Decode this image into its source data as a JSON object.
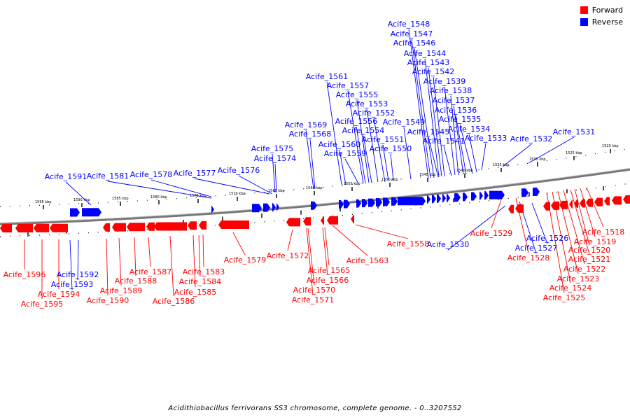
{
  "legend": {
    "forward_label": "Forward",
    "reverse_label": "Reverse",
    "forward_color": "#ff0000",
    "reverse_color": "#0000ff"
  },
  "caption": "Acidithiobacillus ferrivorans SS3 chromosome, complete genome. - 0..3207552",
  "tick_labels": [
    "1595 kbp",
    "1590 kbp",
    "1585 kbp",
    "1580 kbp",
    "1575 kbp",
    "1570 kbp",
    "1565 kbp",
    "1560 kbp",
    "1555 kbp",
    "1550 kbp",
    "1545 kbp",
    "1540 kbp",
    "1535 kbp",
    "1530 kbp",
    "1525 kbp",
    "1520 kbp"
  ],
  "reverse_genes": [
    "Acife_1591",
    "Acife_1581",
    "Acife_1578",
    "Acife_1577",
    "Acife_1576",
    "Acife_1575",
    "Acife_1574",
    "Acife_1569",
    "Acife_1568",
    "Acife_1561",
    "Acife_1560",
    "Acife_1559",
    "Acife_1557",
    "Acife_1556",
    "Acife_1555",
    "Acife_1554",
    "Acife_1553",
    "Acife_1552",
    "Acife_1551",
    "Acife_1550",
    "Acife_1549",
    "Acife_1548",
    "Acife_1547",
    "Acife_1546",
    "Acife_1545",
    "Acife_1544",
    "Acife_1543",
    "Acife_1542",
    "Acife_1541",
    "Acife_1539",
    "Acife_1538",
    "Acife_1537",
    "Acife_1536",
    "Acife_1535",
    "Acife_1534",
    "Acife_1533",
    "Acife_1532",
    "Acife_1531",
    "Acife_1592",
    "Acife_1593",
    "Acife_1530",
    "Acife_1526",
    "Acife_1527"
  ],
  "forward_genes": [
    "Acife_1596",
    "Acife_1595",
    "Acife_1594",
    "Acife_1590",
    "Acife_1589",
    "Acife_1588",
    "Acife_1587",
    "Acife_1586",
    "Acife_1585",
    "Acife_1584",
    "Acife_1583",
    "Acife_1579",
    "Acife_1572",
    "Acife_1571",
    "Acife_1570",
    "Acife_1566",
    "Acife_1565",
    "Acife_1563",
    "Acife_1558",
    "Acife_1529",
    "Acife_1528",
    "Acife_1525",
    "Acife_1524",
    "Acife_1523",
    "Acife_1522",
    "Acife_1521",
    "Acife_1520",
    "Acife_1519",
    "Acife_1518"
  ]
}
